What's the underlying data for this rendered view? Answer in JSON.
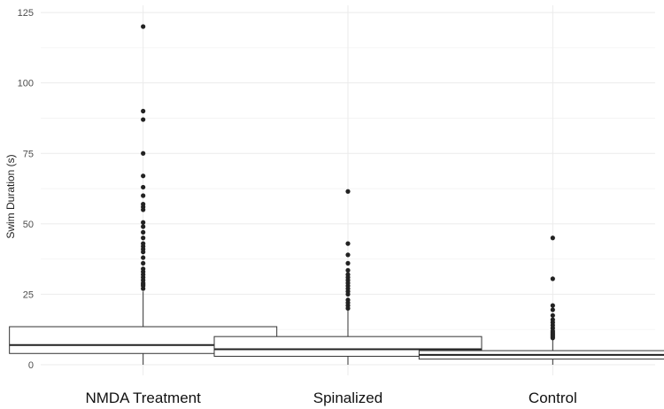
{
  "chart_data": {
    "type": "box",
    "title": "",
    "xlabel": "",
    "ylabel": "Swim Duration (s)",
    "ylim": [
      -3,
      126
    ],
    "yticks": [
      0,
      25,
      50,
      75,
      100,
      125
    ],
    "grid": true,
    "legend": "none",
    "categories": [
      "NMDA Treatment",
      "Spinalized",
      "Control"
    ],
    "boxes": [
      {
        "category": "NMDA Treatment",
        "min": 0,
        "q1": 4,
        "median": 7,
        "q3": 13.5,
        "max": 26,
        "outliers": [
          27,
          28,
          28.5,
          29,
          30,
          31,
          32,
          33,
          34,
          36,
          38,
          40,
          41,
          42,
          43,
          45,
          47,
          49,
          50.5,
          55,
          56,
          57,
          60,
          63,
          67,
          75,
          87,
          90,
          120
        ]
      },
      {
        "category": "Spinalized",
        "min": 0,
        "q1": 3,
        "median": 5.5,
        "q3": 10,
        "max": 19.5,
        "outliers": [
          20,
          21,
          22,
          23,
          25,
          26,
          27,
          28,
          29,
          30,
          31,
          32,
          33.5,
          36,
          39,
          43,
          61.5
        ]
      },
      {
        "category": "Control",
        "min": 0,
        "q1": 2,
        "median": 3.5,
        "q3": 5,
        "max": 9,
        "outliers": [
          9.5,
          10,
          10.5,
          11,
          11.5,
          12,
          13,
          14,
          15,
          16,
          17.5,
          19.5,
          21,
          30.5,
          45
        ]
      }
    ]
  }
}
